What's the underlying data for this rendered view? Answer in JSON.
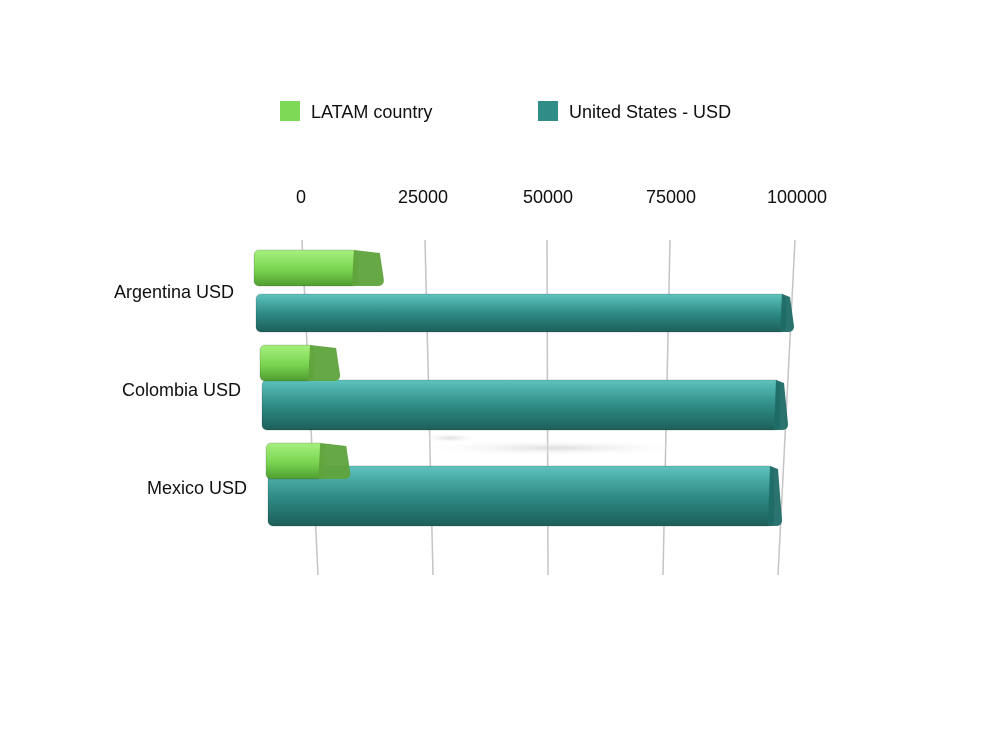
{
  "chart_data": {
    "type": "bar",
    "orientation": "horizontal",
    "style": "3d",
    "categories": [
      "Argentina USD",
      "Colombia USD",
      "Mexico USD"
    ],
    "series": [
      {
        "name": "LATAM country",
        "values": [
          11500,
          8000,
          9000
        ],
        "color": "#7ed957"
      },
      {
        "name": "United States - USD",
        "values": [
          100000,
          100000,
          100000
        ],
        "color": "#2f8c86"
      }
    ],
    "x_ticks": [
      "0",
      "25000",
      "50000",
      "75000",
      "100000"
    ],
    "xlim": [
      0,
      100000
    ],
    "grid": true,
    "legend_position": "top"
  }
}
